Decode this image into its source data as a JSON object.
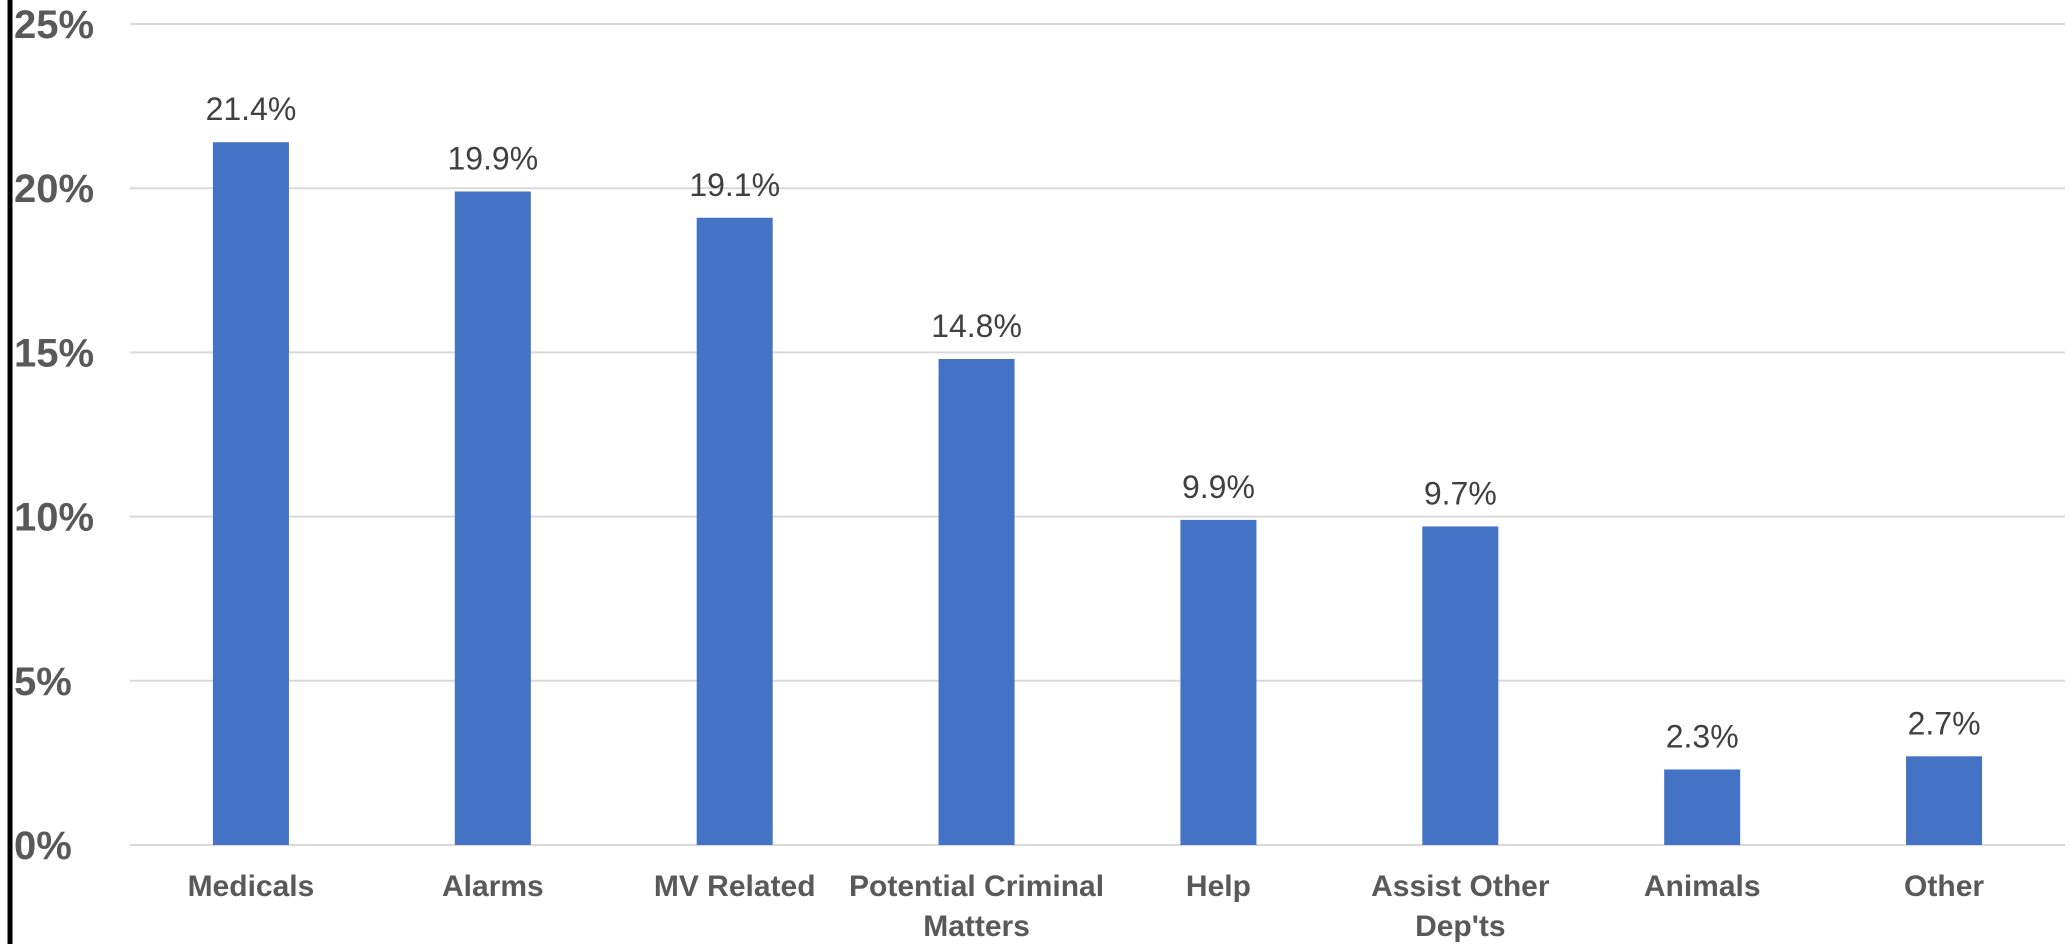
{
  "chart_data": {
    "type": "bar",
    "categories": [
      [
        "Medicals"
      ],
      [
        "Alarms"
      ],
      [
        "MV Related"
      ],
      [
        "Potential Criminal",
        "Matters"
      ],
      [
        "Help"
      ],
      [
        "Assist Other",
        "Dep'ts"
      ],
      [
        "Animals"
      ],
      [
        "Other"
      ]
    ],
    "values": [
      21.4,
      19.9,
      19.1,
      14.8,
      9.9,
      9.7,
      2.3,
      2.7
    ],
    "data_labels": [
      "21.4%",
      "19.9%",
      "19.1%",
      "14.8%",
      "9.9%",
      "9.7%",
      "2.3%",
      "2.7%"
    ],
    "ylim": [
      0,
      25
    ],
    "yticks": [
      0,
      5,
      10,
      15,
      20,
      25
    ],
    "ytick_labels": [
      "0%",
      "5%",
      "10%",
      "15%",
      "20%",
      "25%"
    ],
    "title": "",
    "xlabel": "",
    "ylabel": "",
    "grid": true,
    "legend": "none",
    "colors": {
      "bar": "#4472C4",
      "grid": "#D9D9D9",
      "axis_line": "#000000",
      "label": "#595959",
      "data_label": "#404040"
    }
  }
}
